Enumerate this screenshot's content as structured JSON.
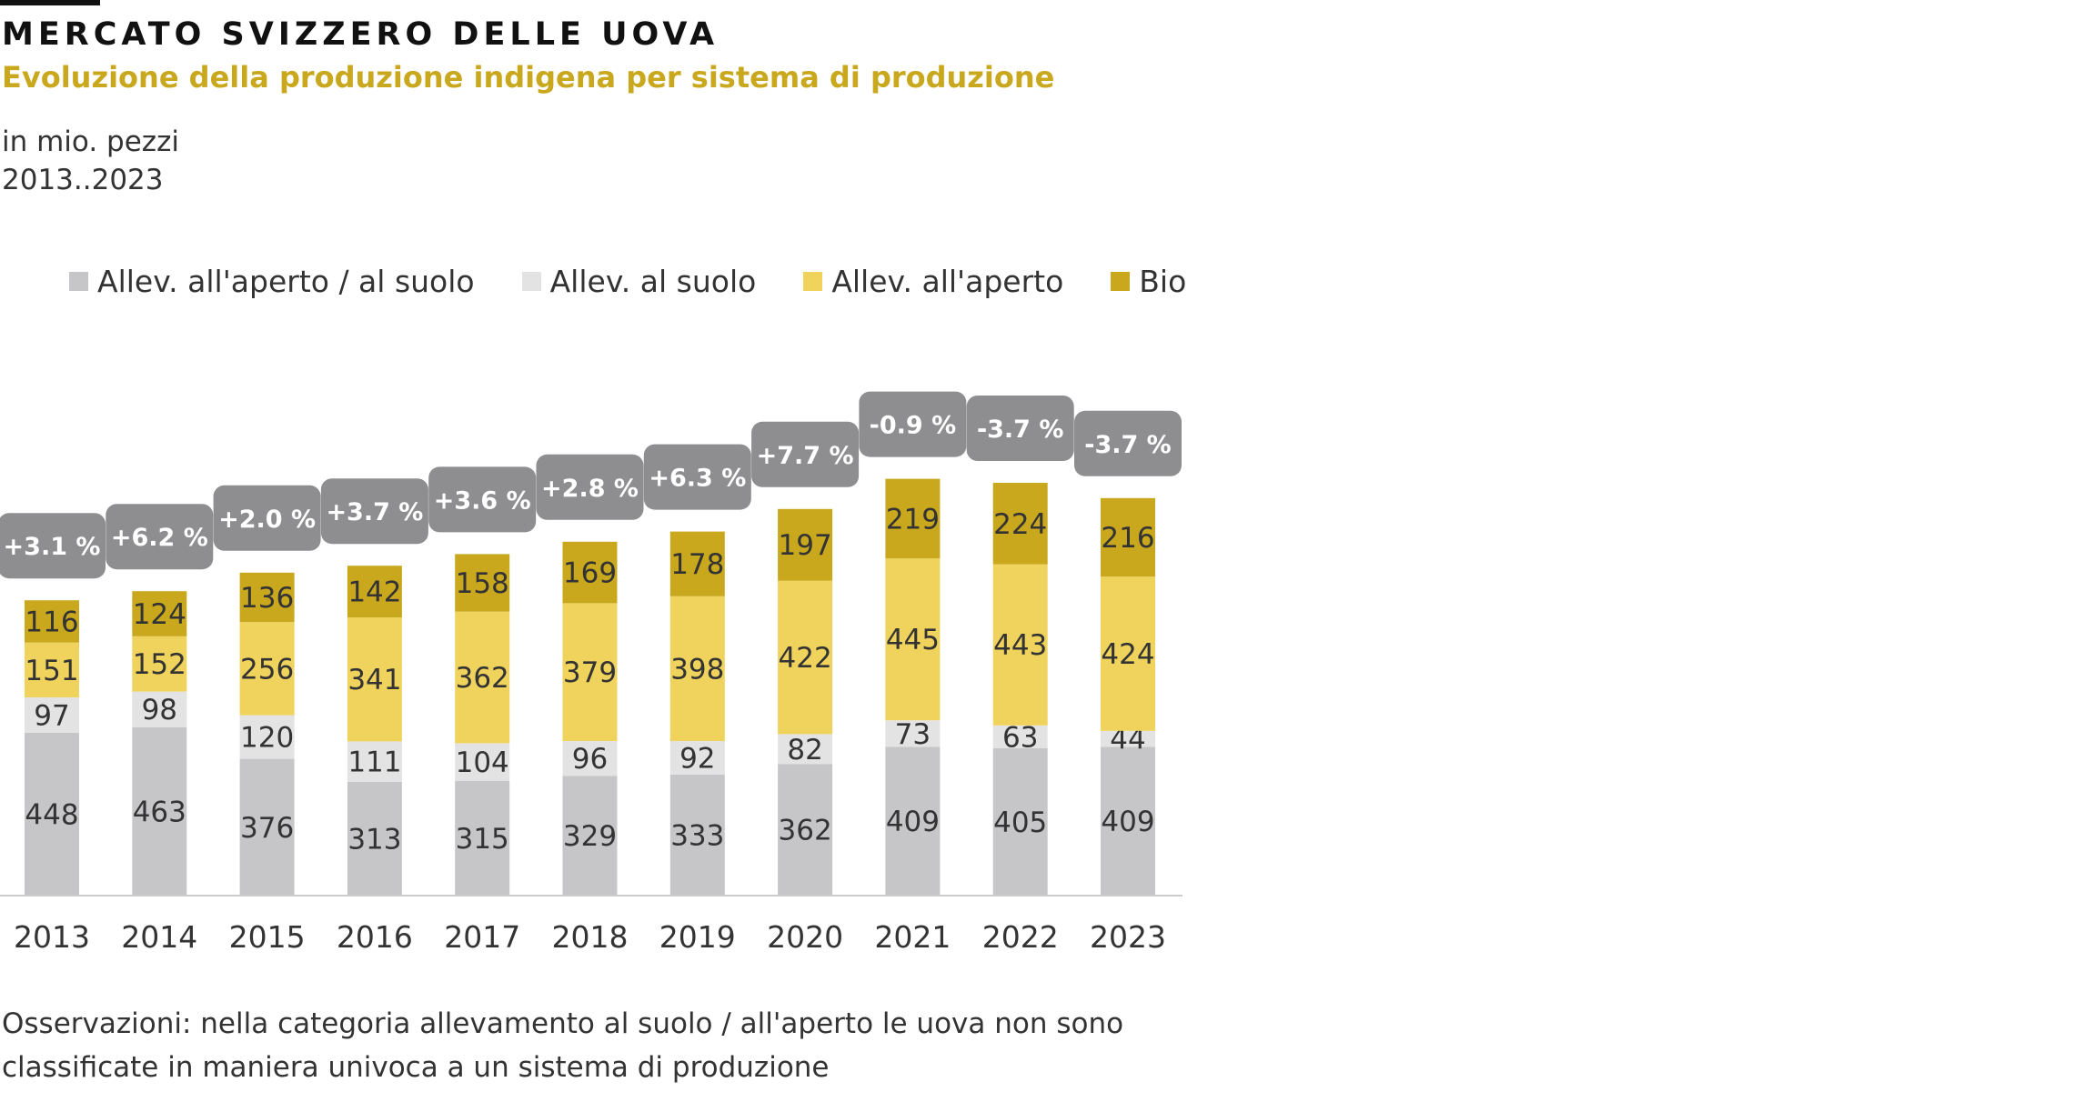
{
  "header": {
    "title": "MERCATO SVIZZERO DELLE UOVA",
    "subtitle": "Evoluzione della produzione indigena per sistema di produzione",
    "unit": "in mio. pezzi",
    "period": "2013..2023"
  },
  "footnote": {
    "line1": "Osservazioni: nella categoria allevamento al suolo / all'aperto le uova non sono",
    "line2": "classificate in maniera univoca a un sistema di produzione"
  },
  "colors": {
    "series": [
      "#c6c6c8",
      "#e3e3e3",
      "#efd35c",
      "#c9a81e"
    ],
    "badge": "#8e8e90",
    "axis": "#cccccc"
  },
  "chart_data": {
    "type": "bar",
    "stacked": true,
    "title": "Evoluzione della produzione indigena per sistema di produzione",
    "ylabel": "in mio. pezzi",
    "xlabel": "",
    "grid": false,
    "legend_position": "top-left",
    "ylim": [
      0,
      1200
    ],
    "categories": [
      "2013",
      "2014",
      "2015",
      "2016",
      "2017",
      "2018",
      "2019",
      "2020",
      "2021",
      "2022",
      "2023"
    ],
    "series": [
      {
        "name": "Allev. all'aperto / al suolo",
        "values": [
          448,
          463,
          376,
          313,
          315,
          329,
          333,
          362,
          409,
          405,
          409
        ]
      },
      {
        "name": "Allev. al suolo",
        "values": [
          97,
          98,
          120,
          111,
          104,
          96,
          92,
          82,
          73,
          63,
          44
        ]
      },
      {
        "name": "Allev. all'aperto",
        "values": [
          151,
          152,
          256,
          341,
          362,
          379,
          398,
          422,
          445,
          443,
          424
        ]
      },
      {
        "name": "Bio",
        "values": [
          116,
          124,
          136,
          142,
          158,
          169,
          178,
          197,
          219,
          224,
          216
        ]
      }
    ],
    "annotations": [
      "+3.1 %",
      "+6.2 %",
      "+2.0 %",
      "+3.7 %",
      "+3.6 %",
      "+2.8 %",
      "+6.3 %",
      "+7.7 %",
      "-0.9  %",
      "-3.7  %",
      "-3.7  %"
    ]
  }
}
